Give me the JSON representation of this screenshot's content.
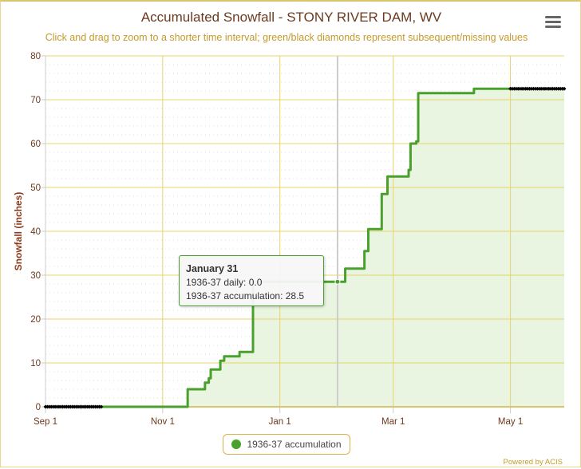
{
  "menu_icon": "hamburger-menu-icon",
  "credit": "Powered by ACIS",
  "colors": {
    "series": "#4aa02c",
    "fill": "#e9f5e1",
    "grid": "#e8d46a",
    "missing": "#000000",
    "crosshair": "#cccccc"
  },
  "tooltip": {
    "date": "January 31",
    "daily": "1936-37 daily: 0.0",
    "accumulation": "1936-37 accumulation: 28.5"
  },
  "chart_data": {
    "type": "line",
    "title": "Accumulated Snowfall - STONY RIVER DAM, WV",
    "subtitle": "Click and drag to zoom to a shorter time interval; green/black diamonds represent subsequent/missing values",
    "xlabel": "",
    "ylabel": "Snowfall (inches)",
    "x_unit": "days since Sep 1",
    "xlim": [
      0,
      270
    ],
    "ylim": [
      0,
      80
    ],
    "yticks": [
      0,
      10,
      20,
      30,
      40,
      50,
      60,
      70,
      80
    ],
    "xticks": [
      {
        "day": 0,
        "label": "Sep 1"
      },
      {
        "day": 61,
        "label": "Nov 1"
      },
      {
        "day": 122,
        "label": "Jan 1"
      },
      {
        "day": 181,
        "label": "Mar 1"
      },
      {
        "day": 242,
        "label": "May 1"
      }
    ],
    "grid": true,
    "legend": "bottom-center",
    "crosshair_day": 152,
    "series": [
      {
        "name": "1936-37 accumulation",
        "steps": [
          [
            0,
            0
          ],
          [
            74,
            4
          ],
          [
            83,
            5.5
          ],
          [
            85,
            6.5
          ],
          [
            86,
            8.5
          ],
          [
            91,
            10.5
          ],
          [
            93,
            11.5
          ],
          [
            101,
            12.5
          ],
          [
            108,
            28.5
          ],
          [
            156,
            31.5
          ],
          [
            166,
            35.5
          ],
          [
            168,
            40.5
          ],
          [
            175,
            48.5
          ],
          [
            178,
            52.5
          ],
          [
            189,
            54
          ],
          [
            190,
            60
          ],
          [
            193,
            60.5
          ],
          [
            194,
            71.5
          ],
          [
            223,
            72.5
          ],
          [
            242,
            72.5
          ]
        ]
      }
    ],
    "missing": [
      {
        "from": 0,
        "to": 29,
        "value": 0
      },
      {
        "from": 242,
        "to": 270,
        "value": 72.5
      }
    ]
  }
}
